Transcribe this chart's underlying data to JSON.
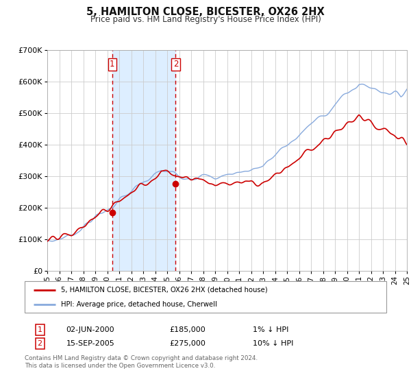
{
  "title": "5, HAMILTON CLOSE, BICESTER, OX26 2HX",
  "subtitle": "Price paid vs. HM Land Registry's House Price Index (HPI)",
  "background_color": "#ffffff",
  "plot_bg_color": "#ffffff",
  "grid_color": "#cccccc",
  "sale1_date_num": 2000.42,
  "sale1_price": 185000,
  "sale1_label": "1",
  "sale1_date_str": "02-JUN-2000",
  "sale1_price_str": "£185,000",
  "sale1_note": "1% ↓ HPI",
  "sale2_date_num": 2005.71,
  "sale2_price": 275000,
  "sale2_label": "2",
  "sale2_date_str": "15-SEP-2005",
  "sale2_price_str": "£275,000",
  "sale2_note": "10% ↓ HPI",
  "price_line_color": "#cc0000",
  "hpi_line_color": "#88aadd",
  "shade_color": "#ddeeff",
  "legend_price_label": "5, HAMILTON CLOSE, BICESTER, OX26 2HX (detached house)",
  "legend_hpi_label": "HPI: Average price, detached house, Cherwell",
  "footer1": "Contains HM Land Registry data © Crown copyright and database right 2024.",
  "footer2": "This data is licensed under the Open Government Licence v3.0.",
  "ylim_max": 700000,
  "xlim_min": 1995,
  "xlim_max": 2025
}
